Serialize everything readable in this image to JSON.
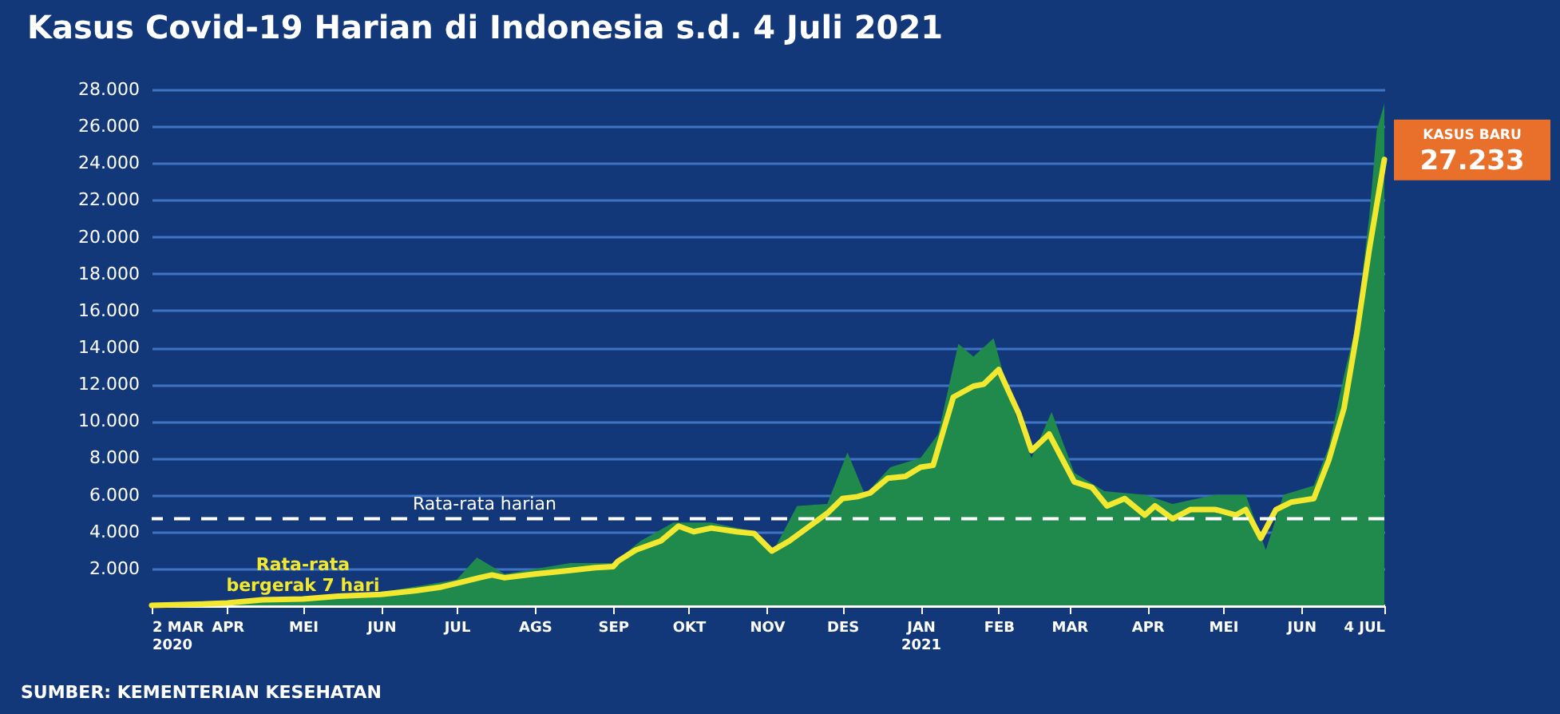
{
  "chart_data": {
    "type": "area",
    "title": "Kasus Covid-19 Harian di Indonesia s.d. 4 Juli 2021",
    "annotations": [
      "SUMBER: KEMENTERIAN KESEHATAN",
      {
        "text": "KASUS BARU 27.233",
        "x": "2021-07-04",
        "y": 27233
      }
    ],
    "xlim": [
      "2020-03-02",
      "2021-07-04"
    ],
    "xticks": [
      {
        "value": "2020-03-02",
        "label": "2 MAR\n2020"
      },
      {
        "value": "2020-04-01",
        "label": "APR"
      },
      {
        "value": "2020-05-01",
        "label": "MEI"
      },
      {
        "value": "2020-06-01",
        "label": "JUN"
      },
      {
        "value": "2020-07-01",
        "label": "JUL"
      },
      {
        "value": "2020-08-01",
        "label": "AGS"
      },
      {
        "value": "2020-09-01",
        "label": "SEP"
      },
      {
        "value": "2020-10-01",
        "label": "OKT"
      },
      {
        "value": "2020-11-01",
        "label": "NOV"
      },
      {
        "value": "2020-12-01",
        "label": "DES"
      },
      {
        "value": "2021-01-01",
        "label": "JAN\n2021"
      },
      {
        "value": "2021-02-01",
        "label": "FEB"
      },
      {
        "value": "2021-03-01",
        "label": "MAR"
      },
      {
        "value": "2021-04-01",
        "label": "APR"
      },
      {
        "value": "2021-05-01",
        "label": "MEI"
      },
      {
        "value": "2021-06-01",
        "label": "JUN"
      },
      {
        "value": "2021-07-04",
        "label": "4 JUL"
      }
    ],
    "ylim": [
      0,
      28000
    ],
    "yticks": [
      {
        "value": 2000,
        "label": "2.000"
      },
      {
        "value": 4000,
        "label": "4.000"
      },
      {
        "value": 6000,
        "label": "6.000"
      },
      {
        "value": 8000,
        "label": "8.000"
      },
      {
        "value": 10000,
        "label": "10.000"
      },
      {
        "value": 12000,
        "label": "12.000"
      },
      {
        "value": 14000,
        "label": "14.000"
      },
      {
        "value": 16000,
        "label": "16.000"
      },
      {
        "value": 18000,
        "label": "18.000"
      },
      {
        "value": 20000,
        "label": "20.000"
      },
      {
        "value": 22000,
        "label": "22.000"
      },
      {
        "value": 24000,
        "label": "24.000"
      },
      {
        "value": 26000,
        "label": "26.000"
      },
      {
        "value": 28000,
        "label": "28.000"
      }
    ],
    "grid": "y",
    "ref_lines": [
      {
        "axis": "y",
        "value": 4700,
        "label": "Rata-rata harian",
        "color": "#ffffff",
        "line_style": "dashed"
      }
    ],
    "series": [
      {
        "color": "#1f8a4c",
        "x": [
          "2020-03-02",
          "2020-04-01",
          "2020-05-01",
          "2020-06-01",
          "2020-07-01",
          "2020-07-09",
          "2020-07-20",
          "2020-08-15",
          "2020-09-01",
          "2020-09-12",
          "2020-09-25",
          "2020-10-10",
          "2020-10-27",
          "2020-11-03",
          "2020-11-13",
          "2020-11-25",
          "2020-12-03",
          "2020-12-10",
          "2020-12-20",
          "2021-01-01",
          "2021-01-08",
          "2021-01-16",
          "2021-01-22",
          "2021-01-30",
          "2021-02-06",
          "2021-02-14",
          "2021-02-22",
          "2021-03-03",
          "2021-03-15",
          "2021-03-31",
          "2021-04-11",
          "2021-04-28",
          "2021-05-10",
          "2021-05-18",
          "2021-05-25",
          "2021-06-06",
          "2021-06-12",
          "2021-06-18",
          "2021-06-23",
          "2021-06-28",
          "2021-07-01",
          "2021-07-04"
        ],
        "values": [
          0,
          200,
          450,
          700,
          1400,
          2600,
          1700,
          2300,
          2300,
          3500,
          4500,
          4500,
          4000,
          2800,
          5400,
          5500,
          8300,
          6000,
          7500,
          8000,
          9300,
          14200,
          13500,
          14500,
          11000,
          8000,
          10500,
          7200,
          6200,
          6000,
          5500,
          6000,
          6000,
          3000,
          6000,
          6500,
          8600,
          12500,
          15300,
          21100,
          25800,
          27233
        ]
      },
      {
        "type": "line",
        "name": "Rata-rata bergerak 7 hari",
        "color": "#f2e830",
        "x": [
          "2020-03-02",
          "2020-03-20",
          "2020-04-01",
          "2020-04-15",
          "2020-05-01",
          "2020-05-15",
          "2020-06-01",
          "2020-06-15",
          "2020-06-25",
          "2020-07-01",
          "2020-07-10",
          "2020-07-15",
          "2020-07-20",
          "2020-08-01",
          "2020-08-15",
          "2020-08-25",
          "2020-09-01",
          "2020-09-03",
          "2020-09-10",
          "2020-09-20",
          "2020-09-27",
          "2020-10-03",
          "2020-10-10",
          "2020-10-20",
          "2020-10-27",
          "2020-11-03",
          "2020-11-10",
          "2020-11-18",
          "2020-11-25",
          "2020-12-01",
          "2020-12-07",
          "2020-12-12",
          "2020-12-19",
          "2020-12-26",
          "2021-01-01",
          "2021-01-06",
          "2021-01-14",
          "2021-01-22",
          "2021-01-26",
          "2021-02-01",
          "2021-02-09",
          "2021-02-14",
          "2021-02-21",
          "2021-03-03",
          "2021-03-10",
          "2021-03-16",
          "2021-03-23",
          "2021-03-31",
          "2021-04-04",
          "2021-04-11",
          "2021-04-18",
          "2021-04-28",
          "2021-05-06",
          "2021-05-10",
          "2021-05-16",
          "2021-05-22",
          "2021-05-28",
          "2021-06-06",
          "2021-06-12",
          "2021-06-18",
          "2021-06-23",
          "2021-06-28",
          "2021-07-04"
        ],
        "values": [
          0,
          60,
          130,
          300,
          350,
          500,
          600,
          800,
          1000,
          1200,
          1500,
          1650,
          1500,
          1700,
          1900,
          2050,
          2100,
          2400,
          3000,
          3500,
          4300,
          4000,
          4200,
          4000,
          3900,
          2950,
          3500,
          4300,
          5000,
          5800,
          5900,
          6100,
          6900,
          7000,
          7500,
          7600,
          11300,
          11900,
          12000,
          12800,
          10400,
          8400,
          9300,
          6700,
          6400,
          5400,
          5800,
          4900,
          5400,
          4700,
          5200,
          5200,
          4900,
          5200,
          3650,
          5200,
          5600,
          5800,
          7900,
          10700,
          14700,
          19300,
          24200
        ]
      }
    ]
  }
}
